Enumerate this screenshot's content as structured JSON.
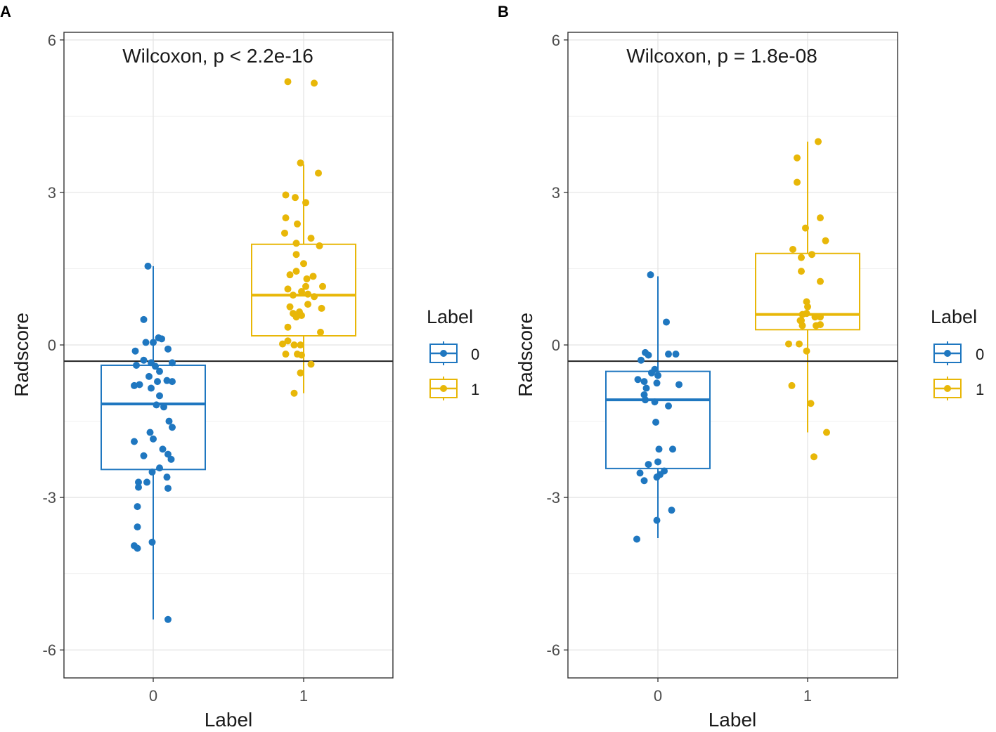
{
  "chart_data": [
    {
      "panel_label": "A",
      "type": "boxplot",
      "title": "Wilcoxon, p < 2.2e-16",
      "xlabel": "Label",
      "ylabel": "Radscore",
      "categories": [
        "0",
        "1"
      ],
      "ylim": [
        -6.55,
        6.15
      ],
      "yticks": [
        -6,
        -3,
        0,
        3,
        6
      ],
      "ytick_labels": [
        "-6",
        "-3",
        "0",
        "3",
        "6"
      ],
      "hline": -0.32,
      "grid": true,
      "legend": {
        "title": "Label",
        "entries": [
          "0",
          "1"
        ],
        "placement": "right"
      },
      "series": [
        {
          "name": "0",
          "color": "#1f77c0",
          "box": {
            "whisker_low": -5.4,
            "q1": -2.45,
            "median": -1.16,
            "q3": -0.4,
            "whisker_high": 1.55
          },
          "points": [
            [
              -0.05,
              1.55
            ],
            [
              -0.09,
              0.5
            ],
            [
              -0.07,
              0.05
            ],
            [
              0.0,
              0.05
            ],
            [
              0.05,
              0.14
            ],
            [
              0.08,
              0.12
            ],
            [
              0.14,
              -0.08
            ],
            [
              -0.17,
              -0.12
            ],
            [
              -0.09,
              -0.3
            ],
            [
              -0.16,
              -0.4
            ],
            [
              -0.02,
              -0.35
            ],
            [
              0.02,
              -0.42
            ],
            [
              0.06,
              -0.52
            ],
            [
              0.18,
              -0.35
            ],
            [
              -0.04,
              -0.62
            ],
            [
              -0.13,
              -0.78
            ],
            [
              -0.18,
              -0.8
            ],
            [
              0.04,
              -0.72
            ],
            [
              0.13,
              -0.7
            ],
            [
              0.18,
              -0.72
            ],
            [
              -0.02,
              -0.85
            ],
            [
              0.06,
              -1.0
            ],
            [
              0.03,
              -1.18
            ],
            [
              0.1,
              -1.22
            ],
            [
              -0.03,
              -1.72
            ],
            [
              0.15,
              -1.5
            ],
            [
              0.18,
              -1.62
            ],
            [
              -0.18,
              -1.9
            ],
            [
              0.0,
              -1.85
            ],
            [
              0.09,
              -2.05
            ],
            [
              0.14,
              -2.15
            ],
            [
              0.17,
              -2.25
            ],
            [
              -0.09,
              -2.18
            ],
            [
              -0.01,
              -2.5
            ],
            [
              0.06,
              -2.42
            ],
            [
              -0.14,
              -2.7
            ],
            [
              -0.06,
              -2.7
            ],
            [
              0.13,
              -2.6
            ],
            [
              -0.14,
              -2.8
            ],
            [
              0.14,
              -2.82
            ],
            [
              -0.15,
              -3.18
            ],
            [
              -0.15,
              -3.58
            ],
            [
              -0.18,
              -3.95
            ],
            [
              -0.15,
              -4.0
            ],
            [
              -0.01,
              -3.88
            ],
            [
              0.14,
              -5.4
            ]
          ]
        },
        {
          "name": "1",
          "color": "#e8b708",
          "box": {
            "whisker_low": -0.95,
            "q1": 0.18,
            "median": 0.98,
            "q3": 1.98,
            "whisker_high": 3.55
          },
          "points": [
            [
              -0.15,
              5.18
            ],
            [
              0.1,
              5.15
            ],
            [
              -0.03,
              3.58
            ],
            [
              0.14,
              3.38
            ],
            [
              -0.17,
              2.95
            ],
            [
              -0.08,
              2.9
            ],
            [
              0.02,
              2.8
            ],
            [
              -0.17,
              2.5
            ],
            [
              -0.06,
              2.38
            ],
            [
              -0.18,
              2.2
            ],
            [
              -0.07,
              2.0
            ],
            [
              0.07,
              2.1
            ],
            [
              0.15,
              1.95
            ],
            [
              -0.07,
              1.78
            ],
            [
              0.0,
              1.6
            ],
            [
              -0.13,
              1.38
            ],
            [
              -0.07,
              1.45
            ],
            [
              0.03,
              1.3
            ],
            [
              0.09,
              1.35
            ],
            [
              0.18,
              1.15
            ],
            [
              -0.15,
              1.1
            ],
            [
              0.02,
              1.15
            ],
            [
              -0.1,
              0.98
            ],
            [
              -0.02,
              1.05
            ],
            [
              0.04,
              1.0
            ],
            [
              0.1,
              0.95
            ],
            [
              -0.13,
              0.75
            ],
            [
              -0.04,
              0.65
            ],
            [
              0.04,
              0.8
            ],
            [
              0.17,
              0.72
            ],
            [
              -0.07,
              0.55
            ],
            [
              -0.1,
              0.62
            ],
            [
              -0.02,
              0.58
            ],
            [
              -0.15,
              0.35
            ],
            [
              0.16,
              0.25
            ],
            [
              -0.15,
              0.08
            ],
            [
              -0.2,
              0.02
            ],
            [
              -0.09,
              0.0
            ],
            [
              -0.03,
              0.0
            ],
            [
              -0.17,
              -0.18
            ],
            [
              -0.06,
              -0.18
            ],
            [
              -0.02,
              -0.2
            ],
            [
              0.07,
              -0.38
            ],
            [
              -0.03,
              -0.55
            ],
            [
              -0.09,
              -0.95
            ]
          ]
        }
      ]
    },
    {
      "panel_label": "B",
      "type": "boxplot",
      "title": "Wilcoxon, p = 1.8e-08",
      "xlabel": "Label",
      "ylabel": "Radscore",
      "categories": [
        "0",
        "1"
      ],
      "ylim": [
        -6.55,
        6.15
      ],
      "yticks": [
        -6,
        -3,
        0,
        3,
        6
      ],
      "ytick_labels": [
        "-6",
        "-3",
        "0",
        "3",
        "6"
      ],
      "hline": -0.32,
      "grid": true,
      "legend": {
        "title": "Label",
        "entries": [
          "0",
          "1"
        ],
        "placement": "right"
      },
      "series": [
        {
          "name": "0",
          "color": "#1f77c0",
          "box": {
            "whisker_low": -3.8,
            "q1": -2.43,
            "median": -1.08,
            "q3": -0.52,
            "whisker_high": 1.35
          },
          "points": [
            [
              -0.07,
              1.38
            ],
            [
              0.08,
              0.45
            ],
            [
              -0.16,
              -0.3
            ],
            [
              -0.12,
              -0.15
            ],
            [
              -0.09,
              -0.2
            ],
            [
              0.1,
              -0.18
            ],
            [
              0.17,
              -0.18
            ],
            [
              -0.06,
              -0.55
            ],
            [
              -0.03,
              -0.48
            ],
            [
              0.0,
              -0.6
            ],
            [
              -0.19,
              -0.68
            ],
            [
              -0.13,
              -0.72
            ],
            [
              -0.01,
              -0.75
            ],
            [
              0.2,
              -0.78
            ],
            [
              -0.11,
              -0.85
            ],
            [
              -0.13,
              -0.98
            ],
            [
              -0.12,
              -1.08
            ],
            [
              -0.03,
              -1.12
            ],
            [
              0.1,
              -1.2
            ],
            [
              -0.02,
              -1.52
            ],
            [
              0.01,
              -2.05
            ],
            [
              0.14,
              -2.05
            ],
            [
              0.0,
              -2.3
            ],
            [
              -0.09,
              -2.35
            ],
            [
              0.02,
              -2.55
            ],
            [
              -0.17,
              -2.52
            ],
            [
              0.06,
              -2.48
            ],
            [
              -0.13,
              -2.67
            ],
            [
              -0.01,
              -2.6
            ],
            [
              0.13,
              -3.25
            ],
            [
              -0.01,
              -3.45
            ],
            [
              -0.2,
              -3.82
            ]
          ]
        },
        {
          "name": "1",
          "color": "#e8b708",
          "box": {
            "whisker_low": -1.72,
            "q1": 0.3,
            "median": 0.6,
            "q3": 1.8,
            "whisker_high": 4.0
          },
          "points": [
            [
              0.1,
              4.0
            ],
            [
              -0.1,
              3.68
            ],
            [
              -0.1,
              3.2
            ],
            [
              0.12,
              2.5
            ],
            [
              -0.02,
              2.3
            ],
            [
              0.17,
              2.05
            ],
            [
              -0.14,
              1.88
            ],
            [
              -0.06,
              1.72
            ],
            [
              0.04,
              1.78
            ],
            [
              -0.06,
              1.45
            ],
            [
              0.12,
              1.25
            ],
            [
              -0.01,
              0.85
            ],
            [
              0.0,
              0.75
            ],
            [
              -0.05,
              0.6
            ],
            [
              -0.01,
              0.62
            ],
            [
              0.07,
              0.55
            ],
            [
              0.12,
              0.55
            ],
            [
              -0.06,
              0.48
            ],
            [
              -0.05,
              0.38
            ],
            [
              0.08,
              0.38
            ],
            [
              0.12,
              0.4
            ],
            [
              -0.07,
              0.48
            ],
            [
              -0.18,
              0.02
            ],
            [
              -0.08,
              0.02
            ],
            [
              -0.01,
              -0.12
            ],
            [
              -0.15,
              -0.8
            ],
            [
              0.03,
              -1.15
            ],
            [
              0.18,
              -1.72
            ],
            [
              0.06,
              -2.2
            ]
          ]
        }
      ]
    }
  ]
}
